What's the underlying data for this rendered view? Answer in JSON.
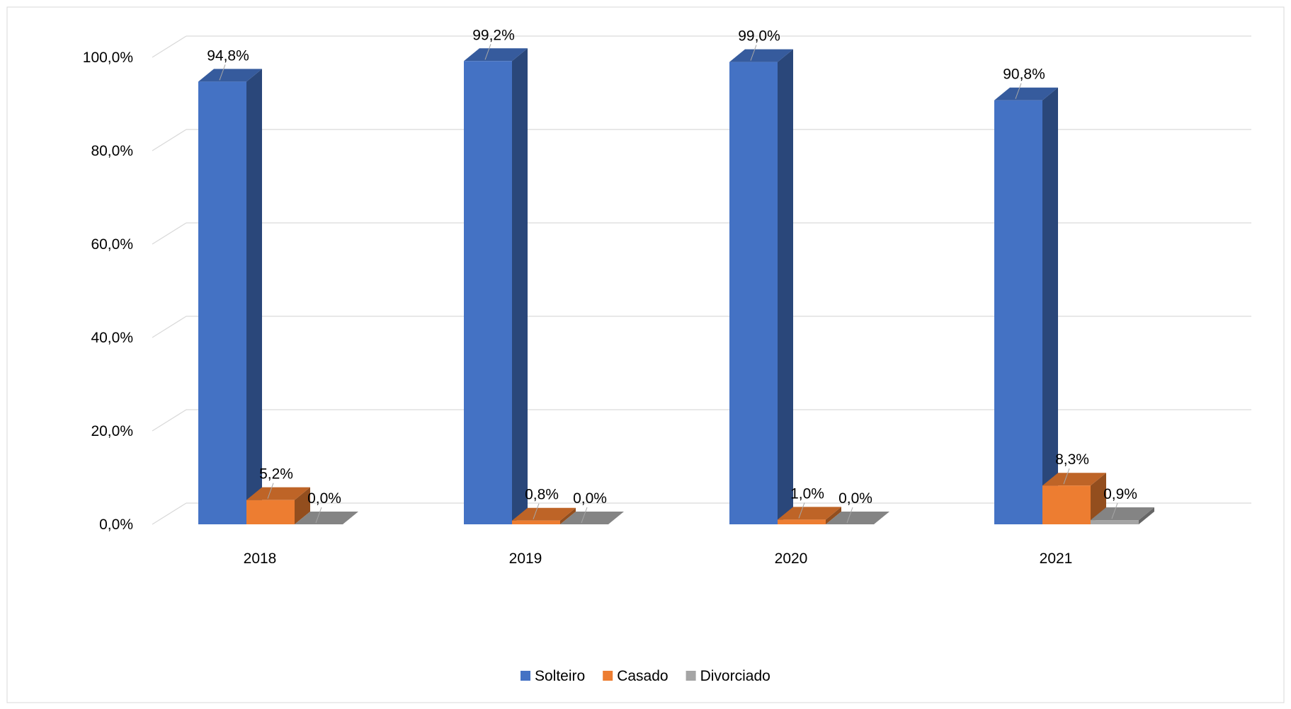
{
  "chart_data": {
    "type": "bar",
    "title": "",
    "xlabel": "",
    "ylabel": "",
    "categories": [
      "2018",
      "2019",
      "2020",
      "2021"
    ],
    "series": [
      {
        "name": "Solteiro",
        "values": [
          94.8,
          99.2,
          99.0,
          90.8
        ],
        "labels": [
          "94,8%",
          "99,2%",
          "99,0%",
          "90,8%"
        ],
        "color": "#4472C4"
      },
      {
        "name": "Casado",
        "values": [
          5.2,
          0.8,
          1.0,
          8.3
        ],
        "labels": [
          "5,2%",
          "0,8%",
          "1,0%",
          "8,3%"
        ],
        "color": "#ED7D31"
      },
      {
        "name": "Divorciado",
        "values": [
          0.0,
          0.0,
          0.0,
          0.9
        ],
        "labels": [
          "0,0%",
          "0,0%",
          "0,0%",
          "0,9%"
        ],
        "color": "#A5A5A5"
      }
    ],
    "ylim": [
      0,
      100
    ],
    "yticks": [
      0,
      20,
      40,
      60,
      80,
      100
    ],
    "ytick_labels": [
      "0,0%",
      "20,0%",
      "40,0%",
      "60,0%",
      "80,0%",
      "100,0%"
    ],
    "grid": true,
    "legend_position": "bottom",
    "style": "3d-column"
  }
}
